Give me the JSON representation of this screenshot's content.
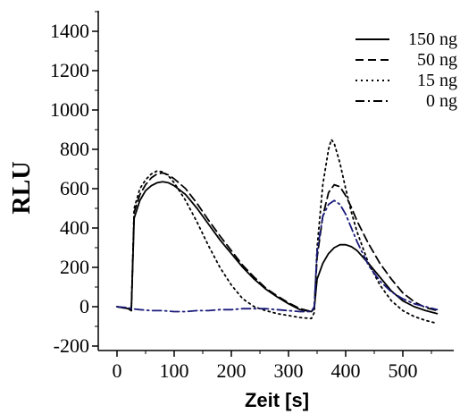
{
  "chart_data": {
    "type": "line",
    "title": "",
    "xlabel": "Zeit [s]",
    "ylabel": "RLU",
    "xlim": [
      -20,
      570
    ],
    "ylim": [
      -200,
      1500
    ],
    "xticks": [
      0,
      100,
      200,
      300,
      400,
      500
    ],
    "yticks": [
      -200,
      0,
      200,
      400,
      600,
      800,
      1000,
      1200,
      1400
    ],
    "x_tick_labels": [
      "0",
      "100",
      "200",
      "300",
      "400",
      "500"
    ],
    "y_tick_labels": [
      "-200",
      "0",
      "200",
      "400",
      "600",
      "800",
      "1000",
      "1200",
      "1400"
    ],
    "grid": false,
    "legend_position": "top-right",
    "series": [
      {
        "name": "150 ng",
        "style": "solid",
        "color": "#000000",
        "points": [
          [
            0,
            0
          ],
          [
            20,
            -10
          ],
          [
            25,
            -20
          ],
          [
            30,
            450
          ],
          [
            40,
            540
          ],
          [
            50,
            590
          ],
          [
            60,
            615
          ],
          [
            70,
            630
          ],
          [
            80,
            635
          ],
          [
            90,
            630
          ],
          [
            100,
            615
          ],
          [
            120,
            570
          ],
          [
            140,
            500
          ],
          [
            160,
            420
          ],
          [
            180,
            340
          ],
          [
            200,
            270
          ],
          [
            220,
            200
          ],
          [
            240,
            140
          ],
          [
            260,
            90
          ],
          [
            280,
            50
          ],
          [
            300,
            15
          ],
          [
            320,
            -15
          ],
          [
            340,
            -25
          ],
          [
            345,
            -10
          ],
          [
            350,
            140
          ],
          [
            360,
            220
          ],
          [
            370,
            270
          ],
          [
            380,
            300
          ],
          [
            390,
            315
          ],
          [
            400,
            315
          ],
          [
            410,
            305
          ],
          [
            420,
            285
          ],
          [
            440,
            220
          ],
          [
            460,
            150
          ],
          [
            480,
            80
          ],
          [
            500,
            30
          ],
          [
            520,
            0
          ],
          [
            540,
            -20
          ],
          [
            560,
            -35
          ]
        ]
      },
      {
        "name": "50 ng",
        "style": "dashed",
        "color": "#000000",
        "points": [
          [
            0,
            0
          ],
          [
            20,
            -10
          ],
          [
            25,
            -20
          ],
          [
            30,
            480
          ],
          [
            40,
            570
          ],
          [
            50,
            620
          ],
          [
            60,
            655
          ],
          [
            70,
            675
          ],
          [
            80,
            680
          ],
          [
            90,
            670
          ],
          [
            100,
            650
          ],
          [
            120,
            600
          ],
          [
            140,
            525
          ],
          [
            160,
            440
          ],
          [
            180,
            360
          ],
          [
            200,
            285
          ],
          [
            220,
            210
          ],
          [
            240,
            150
          ],
          [
            260,
            95
          ],
          [
            280,
            55
          ],
          [
            300,
            20
          ],
          [
            320,
            -10
          ],
          [
            340,
            -25
          ],
          [
            345,
            -5
          ],
          [
            350,
            250
          ],
          [
            360,
            460
          ],
          [
            370,
            580
          ],
          [
            380,
            620
          ],
          [
            390,
            610
          ],
          [
            400,
            565
          ],
          [
            410,
            505
          ],
          [
            420,
            435
          ],
          [
            440,
            320
          ],
          [
            460,
            220
          ],
          [
            480,
            140
          ],
          [
            500,
            70
          ],
          [
            520,
            25
          ],
          [
            540,
            -5
          ],
          [
            560,
            -20
          ]
        ]
      },
      {
        "name": "15 ng",
        "style": "dotted",
        "color": "#000000",
        "points": [
          [
            0,
            0
          ],
          [
            20,
            -10
          ],
          [
            25,
            -20
          ],
          [
            30,
            500
          ],
          [
            40,
            600
          ],
          [
            50,
            645
          ],
          [
            60,
            675
          ],
          [
            70,
            690
          ],
          [
            80,
            685
          ],
          [
            90,
            665
          ],
          [
            100,
            630
          ],
          [
            120,
            540
          ],
          [
            140,
            430
          ],
          [
            160,
            310
          ],
          [
            180,
            200
          ],
          [
            200,
            110
          ],
          [
            220,
            40
          ],
          [
            240,
            0
          ],
          [
            260,
            -20
          ],
          [
            280,
            -35
          ],
          [
            300,
            -45
          ],
          [
            320,
            -55
          ],
          [
            340,
            -60
          ],
          [
            345,
            -30
          ],
          [
            350,
            300
          ],
          [
            360,
            620
          ],
          [
            370,
            800
          ],
          [
            375,
            850
          ],
          [
            380,
            830
          ],
          [
            390,
            730
          ],
          [
            400,
            600
          ],
          [
            410,
            480
          ],
          [
            420,
            380
          ],
          [
            440,
            220
          ],
          [
            460,
            110
          ],
          [
            480,
            30
          ],
          [
            500,
            -20
          ],
          [
            520,
            -50
          ],
          [
            540,
            -70
          ],
          [
            560,
            -85
          ]
        ]
      },
      {
        "name": "0 ng",
        "style": "dashdot",
        "color": "#1a1a7a",
        "points": [
          [
            0,
            0
          ],
          [
            20,
            -5
          ],
          [
            25,
            -10
          ],
          [
            40,
            -15
          ],
          [
            60,
            -20
          ],
          [
            80,
            -20
          ],
          [
            100,
            -25
          ],
          [
            120,
            -25
          ],
          [
            140,
            -20
          ],
          [
            160,
            -20
          ],
          [
            180,
            -15
          ],
          [
            200,
            -15
          ],
          [
            220,
            -10
          ],
          [
            240,
            -10
          ],
          [
            260,
            -10
          ],
          [
            280,
            -15
          ],
          [
            300,
            -20
          ],
          [
            320,
            -25
          ],
          [
            340,
            -25
          ],
          [
            345,
            0
          ],
          [
            350,
            280
          ],
          [
            360,
            460
          ],
          [
            370,
            520
          ],
          [
            380,
            540
          ],
          [
            390,
            520
          ],
          [
            400,
            470
          ],
          [
            410,
            400
          ],
          [
            420,
            330
          ],
          [
            440,
            210
          ],
          [
            460,
            130
          ],
          [
            480,
            75
          ],
          [
            500,
            40
          ],
          [
            520,
            15
          ],
          [
            540,
            0
          ],
          [
            560,
            -15
          ]
        ]
      }
    ]
  }
}
